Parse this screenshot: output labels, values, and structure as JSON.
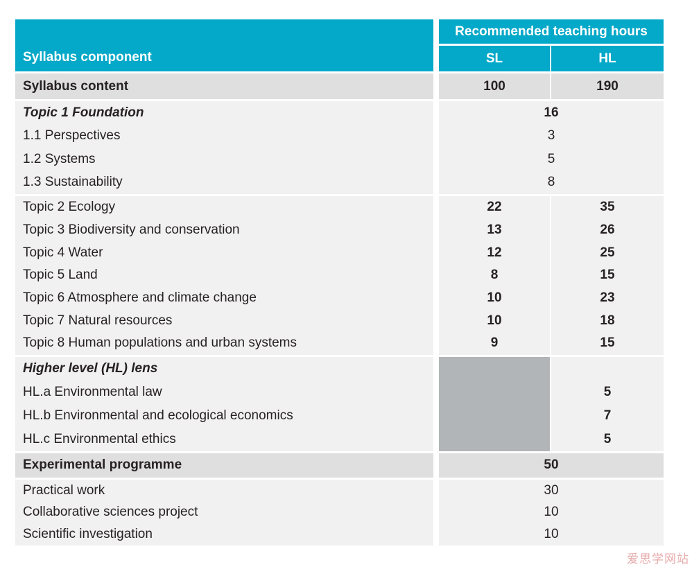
{
  "colors": {
    "accent": "#04a8c8",
    "summary_bg": "#e0dfdf",
    "section_bg": "#f2f1f1",
    "disabled_cell": "#b1b5b8",
    "watermark": "#e09090"
  },
  "table": {
    "header": {
      "component_label": "Syllabus component",
      "group_label": "Recommended teaching hours",
      "sl_label": "SL",
      "hl_label": "HL"
    },
    "sections": [
      {
        "name": "syllabus-content-summary",
        "type": "summary",
        "label": "Syllabus content",
        "sl": "100",
        "hl": "190"
      },
      {
        "name": "topic-1-foundation-section",
        "type": "section",
        "rows": [
          {
            "label": "Topic 1 Foundation",
            "em": true,
            "span": "16",
            "bold": true
          },
          {
            "label": "1.1 Perspectives",
            "span": "3"
          },
          {
            "label": "1.2 Systems",
            "span": "5"
          },
          {
            "label": "1.3 Sustainability",
            "span": "8"
          }
        ]
      },
      {
        "name": "topics-2-8-section",
        "type": "section",
        "rows": [
          {
            "label": "Topic 2 Ecology",
            "sl": "22",
            "hl": "35"
          },
          {
            "label": "Topic 3 Biodiversity and conservation",
            "sl": "13",
            "hl": "26"
          },
          {
            "label": "Topic 4 Water",
            "sl": "12",
            "hl": "25"
          },
          {
            "label": "Topic 5 Land",
            "sl": "8",
            "hl": "15"
          },
          {
            "label": "Topic 6 Atmosphere and climate change",
            "sl": "10",
            "hl": "23"
          },
          {
            "label": "Topic 7 Natural resources",
            "sl": "10",
            "hl": "18"
          },
          {
            "label": "Topic 8 Human populations and urban systems",
            "sl": "9",
            "hl": "15"
          }
        ]
      },
      {
        "name": "hl-lens-section",
        "type": "section",
        "gray_sl": true,
        "rows": [
          {
            "label": "Higher level (HL) lens",
            "em": true,
            "hl": ""
          },
          {
            "label": "HL.a Environmental law",
            "hl": "5"
          },
          {
            "label": "HL.b Environmental and ecological economics",
            "hl": "7"
          },
          {
            "label": "HL.c Environmental ethics",
            "hl": "5"
          }
        ]
      },
      {
        "name": "experimental-programme-summary",
        "type": "summary",
        "label": "Experimental programme",
        "span": "50"
      },
      {
        "name": "experimental-rows-section",
        "type": "section",
        "rows": [
          {
            "label": "Practical work",
            "span": "30"
          },
          {
            "label": "Collaborative sciences project",
            "span": "10"
          },
          {
            "label": "Scientific investigation",
            "span": "10"
          }
        ]
      }
    ]
  },
  "watermark": "爱思学网站"
}
